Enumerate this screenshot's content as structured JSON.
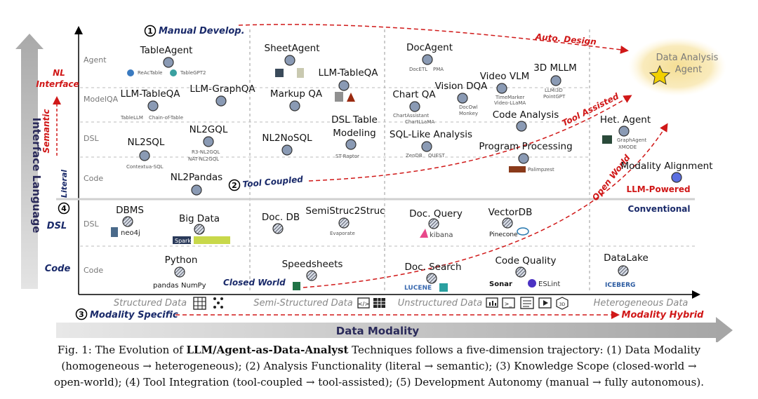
{
  "axes": {
    "y_title": "Interface Language",
    "x_title": "Data Modality"
  },
  "y_rows": [
    "Agent",
    "ModelQA",
    "DSL",
    "Code",
    "DSL",
    "Code"
  ],
  "y_side": {
    "nl_interface_1": "NL",
    "nl_interface_2": "Interface",
    "semantic": "Semantic",
    "literal": "Literal",
    "circle4": "4",
    "dsl": "DSL",
    "code": "Code"
  },
  "x_columns": [
    "Structured Data",
    "Semi-Structured Data",
    "Unstructured Data",
    "Heterogeneous Data"
  ],
  "dimensions": {
    "manual_develop": "Manual Develop.",
    "manual_num": "1",
    "auto_design": "Auto. Design",
    "tool_coupled": "Tool Coupled",
    "tool_coupled_num": "2",
    "tool_assisted": "Tool Assisted",
    "open_world": "Open World",
    "closed_world": "Closed World",
    "modality_specific": "Modality Specific",
    "modality_specific_num": "3",
    "modality_hybrid": "Modality Hybrid",
    "llm_powered": "LLM-Powered",
    "conventional": "Conventional",
    "target_1": "Data Analysis",
    "target_2": "Agent"
  },
  "nodes": [
    {
      "label": "TableAgent",
      "subs": [
        "ReAcTable",
        "TableGPT2"
      ],
      "kind": "solid"
    },
    {
      "label": "SheetAgent",
      "subs": [],
      "kind": "solid"
    },
    {
      "label": "DocAgent",
      "subs": [
        "DocETL",
        "PMA"
      ],
      "kind": "solid"
    },
    {
      "label": "LLM-TableQA",
      "subs": [
        "TableLLM",
        "Chain-of-Table"
      ],
      "kind": "solid"
    },
    {
      "label": "LLM-GraphQA",
      "subs": [],
      "kind": "solid"
    },
    {
      "label": "LLM-TableQA",
      "subs": [],
      "kind": "solid"
    },
    {
      "label": "Markup QA",
      "subs": [],
      "kind": "solid"
    },
    {
      "label": "Chart QA",
      "subs": [
        "ChartAssistant",
        "ChartLLaMA"
      ],
      "kind": "solid"
    },
    {
      "label": "Vision DQA",
      "subs": [
        "DocOwl",
        "Monkey"
      ],
      "kind": "solid"
    },
    {
      "label": "Video VLM",
      "subs": [
        "TimeMarker",
        "Video-LLaMA"
      ],
      "kind": "solid"
    },
    {
      "label": "3D MLLM",
      "subs": [
        "LLMI3D",
        "PointGPT"
      ],
      "kind": "solid"
    },
    {
      "label": "Code Analysis",
      "subs": [],
      "kind": "solid"
    },
    {
      "label": "NL2SQL",
      "subs": [
        "Contextua-SQL"
      ],
      "kind": "solid"
    },
    {
      "label": "NL2GQL",
      "subs": [
        "R3-NL2GQL",
        "NAT-NL2GQL"
      ],
      "kind": "solid"
    },
    {
      "label": "NL2NoSQL",
      "subs": [],
      "kind": "solid"
    },
    {
      "label": "DSL Table",
      "subs": [],
      "kind": "solid"
    },
    {
      "label": "Modeling",
      "subs": [
        "ST-Raptor"
      ],
      "kind": "solid"
    },
    {
      "label": "SQL-Like Analysis",
      "subs": [
        "ZenDB",
        "QUEST"
      ],
      "kind": "solid"
    },
    {
      "label": "Program Processing",
      "subs": [
        "Palimpzest"
      ],
      "kind": "solid"
    },
    {
      "label": "Het. Agent",
      "subs": [
        "GraphAgent",
        "XMODE"
      ],
      "kind": "solid"
    },
    {
      "label": "NL2Pandas",
      "subs": [],
      "kind": "solid"
    },
    {
      "label": "Modality Alignment",
      "subs": [],
      "kind": "solid"
    },
    {
      "label": "DBMS",
      "subs": [
        "neo4j"
      ],
      "kind": "hatched"
    },
    {
      "label": "Big Data",
      "subs": [
        "Spark"
      ],
      "kind": "hatched"
    },
    {
      "label": "Doc. DB",
      "subs": [],
      "kind": "hatched"
    },
    {
      "label": "SemiStruc2Struc",
      "subs": [
        "Evaporate"
      ],
      "kind": "hatched"
    },
    {
      "label": "Doc. Query",
      "subs": [
        "kibana"
      ],
      "kind": "hatched"
    },
    {
      "label": "VectorDB",
      "subs": [
        "Pinecone"
      ],
      "kind": "hatched"
    },
    {
      "label": "Python",
      "subs": [
        "pandas",
        "NumPy"
      ],
      "kind": "hatched"
    },
    {
      "label": "Speedsheets",
      "subs": [],
      "kind": "hatched"
    },
    {
      "label": "Doc. Search",
      "subs": [
        "LUCENE"
      ],
      "kind": "hatched"
    },
    {
      "label": "Code Quality",
      "subs": [
        "Sonar",
        "ESLint"
      ],
      "kind": "hatched"
    },
    {
      "label": "DataLake",
      "subs": [
        "ICEBERG"
      ],
      "kind": "hatched"
    }
  ],
  "colors": {
    "solid_node": "#8a9ab4",
    "hatched_node": "#b8c2d0",
    "accent_red": "#d01818",
    "navy": "#1a2a6a",
    "axis_gray": "#bdbdbd",
    "target_glow": "#f3d98a",
    "star": "#f2d000"
  },
  "caption": {
    "prefix": "Fig. 1: The Evolution of ",
    "bold": "LLM/Agent-as-Data-Analyst",
    "suffix": " Techniques follows a five-dimension trajectory: (1) Data Modality",
    "line2": "(homogeneous → heterogeneous); (2) Analysis Functionality (literal → semantic); (3) Knowledge Scope (closed-world →",
    "line3": "open-world); (4) Tool Integration (tool-coupled → tool-assisted); (5) Development Autonomy (manual → fully autonomous)."
  }
}
